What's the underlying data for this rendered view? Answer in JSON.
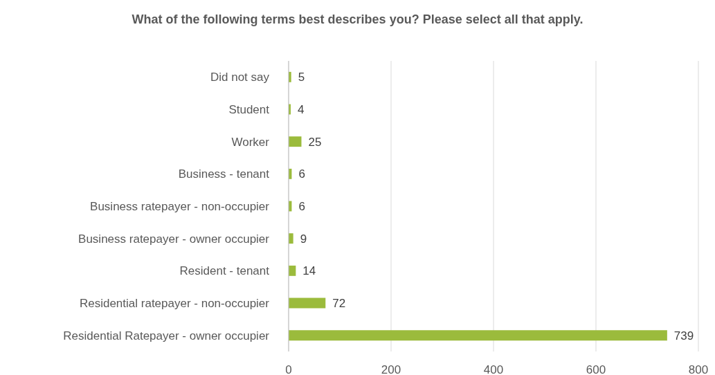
{
  "chart_data": {
    "type": "bar",
    "orientation": "horizontal",
    "title": "What of the following terms best describes you? Please select all that apply.",
    "categories": [
      "Did not say",
      "Student",
      "Worker",
      "Business - tenant",
      "Business ratepayer - non-occupier",
      "Business ratepayer - owner occupier",
      "Resident - tenant",
      "Residential ratepayer - non-occupier",
      "Residential Ratepayer - owner occupier"
    ],
    "values": [
      5,
      4,
      25,
      6,
      6,
      9,
      14,
      72,
      739
    ],
    "color": "#9bbb3c",
    "xlim": [
      0,
      800
    ],
    "xticks": [
      0,
      200,
      400,
      600,
      800
    ],
    "grid": "x",
    "data_labels": true,
    "legend": false
  }
}
